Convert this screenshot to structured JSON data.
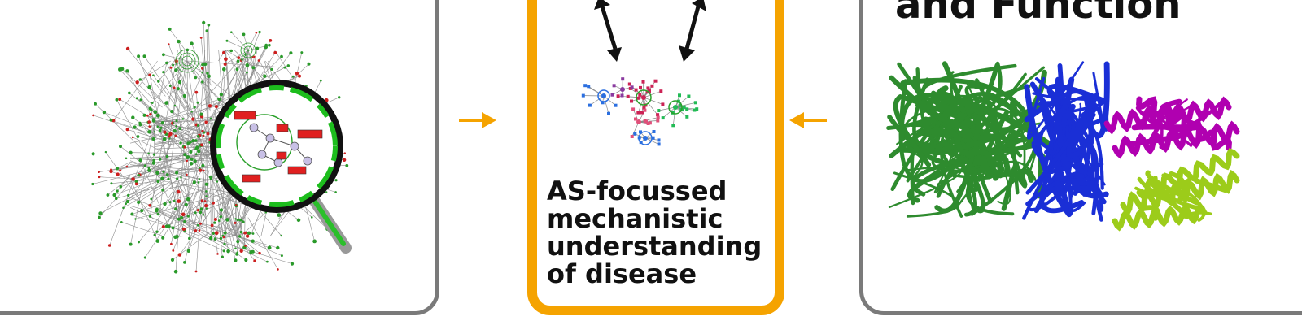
{
  "right_panel": {
    "heading": "and Function"
  },
  "center_panel": {
    "caption": "AS-focussed\nmechanistic\nunderstanding\nof disease"
  },
  "colors": {
    "panel_border": "#7a7a7a",
    "highlight_border": "#f5a300",
    "connector_arrow": "#f5a300",
    "network_green": "#2a9a2a",
    "network_red": "#cc1f1f",
    "protein_green": "#2e8b2e",
    "protein_blue": "#1a2fd6",
    "protein_magenta": "#b000b0",
    "protein_lime": "#9ccc1a"
  },
  "icons": [
    "magnifier-icon",
    "network-icon",
    "protein-structure-icon",
    "double-arrow-icon",
    "right-arrow-icon",
    "left-arrow-icon"
  ]
}
